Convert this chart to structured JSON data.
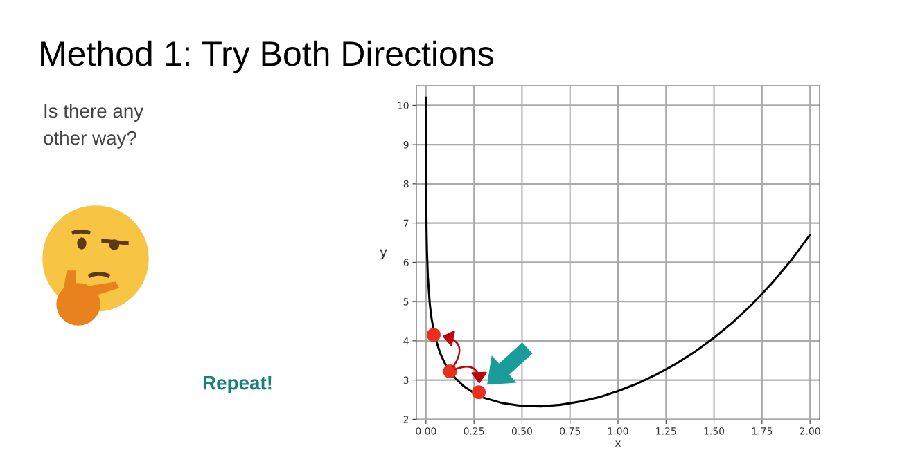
{
  "chart_data": {
    "type": "line",
    "title": "Method 1: Try Both Directions",
    "xlabel": "x",
    "ylabel": "y",
    "annotations": [
      "Is there any\nother way?",
      "Repeat!"
    ],
    "series": [
      {
        "color": "#000000",
        "marker": "none",
        "line_style": "solid",
        "x": [
          0,
          0.001,
          0.003,
          0.005,
          0.01,
          0.02,
          0.03,
          0.05,
          0.075,
          0.1,
          0.15,
          0.2,
          0.25,
          0.3,
          0.4,
          0.5,
          0.6,
          0.7,
          0.8,
          0.9,
          1.0,
          1.1,
          1.2,
          1.3,
          1.4,
          1.5,
          1.6,
          1.7,
          1.8,
          1.9,
          2.0
        ],
        "values": [
          10.2,
          7.91,
          6.81,
          6.3,
          5.62,
          4.93,
          4.54,
          4.05,
          3.67,
          3.41,
          3.06,
          2.83,
          2.67,
          2.55,
          2.41,
          2.34,
          2.33,
          2.37,
          2.45,
          2.56,
          2.72,
          2.91,
          3.14,
          3.41,
          3.72,
          4.08,
          4.48,
          4.94,
          5.46,
          6.04,
          6.7
        ]
      },
      {
        "type": "scatter",
        "color": "#e8301f",
        "marker": "circle",
        "x": [
          0.04,
          0.125,
          0.275
        ],
        "values": [
          4.15,
          3.22,
          2.69
        ]
      }
    ],
    "xlim": [
      -0.05,
      2.05
    ],
    "ylim": [
      1.98,
      10.5
    ],
    "xticks": [
      {
        "value": 0,
        "label": "0.00"
      },
      {
        "value": 0.25,
        "label": "0.25"
      },
      {
        "value": 0.5,
        "label": "0.50"
      },
      {
        "value": 0.75,
        "label": "0.75"
      },
      {
        "value": 1.0,
        "label": "1.00"
      },
      {
        "value": 1.25,
        "label": "1.25"
      },
      {
        "value": 1.5,
        "label": "1.50"
      },
      {
        "value": 1.75,
        "label": "1.75"
      },
      {
        "value": 2.0,
        "label": "2.00"
      }
    ],
    "yticks": [
      2,
      3,
      4,
      5,
      6,
      7,
      8,
      9,
      10
    ],
    "grid": true
  }
}
